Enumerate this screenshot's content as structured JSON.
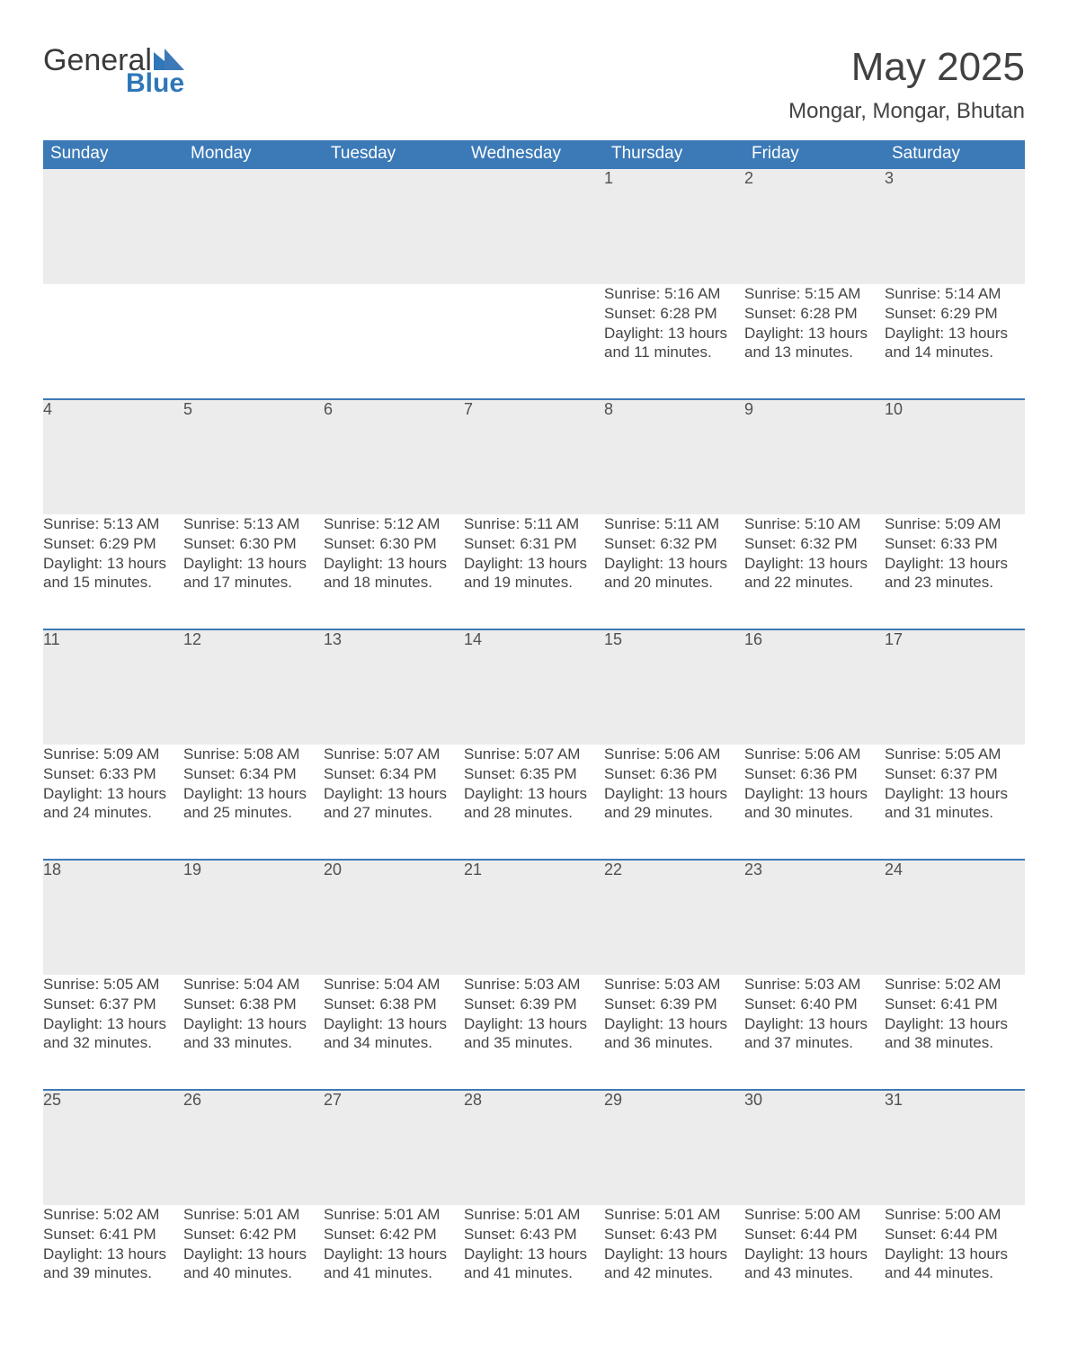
{
  "logo": {
    "text1": "General",
    "text2": "Blue",
    "accent_color": "#2f77b8"
  },
  "title": "May 2025",
  "subtitle": "Mongar, Mongar, Bhutan",
  "header_bg": "#3c7ab7",
  "header_fg": "#ffffff",
  "daynum_bg": "#ececec",
  "border_color": "#3c7ab7",
  "text_color": "#454545",
  "font_family": "Arial, Helvetica, sans-serif",
  "weekdays": [
    "Sunday",
    "Monday",
    "Tuesday",
    "Wednesday",
    "Thursday",
    "Friday",
    "Saturday"
  ],
  "weeks": [
    [
      null,
      null,
      null,
      null,
      {
        "n": "1",
        "sunrise": "5:16 AM",
        "sunset": "6:28 PM",
        "daylight": "13 hours and 11 minutes."
      },
      {
        "n": "2",
        "sunrise": "5:15 AM",
        "sunset": "6:28 PM",
        "daylight": "13 hours and 13 minutes."
      },
      {
        "n": "3",
        "sunrise": "5:14 AM",
        "sunset": "6:29 PM",
        "daylight": "13 hours and 14 minutes."
      }
    ],
    [
      {
        "n": "4",
        "sunrise": "5:13 AM",
        "sunset": "6:29 PM",
        "daylight": "13 hours and 15 minutes."
      },
      {
        "n": "5",
        "sunrise": "5:13 AM",
        "sunset": "6:30 PM",
        "daylight": "13 hours and 17 minutes."
      },
      {
        "n": "6",
        "sunrise": "5:12 AM",
        "sunset": "6:30 PM",
        "daylight": "13 hours and 18 minutes."
      },
      {
        "n": "7",
        "sunrise": "5:11 AM",
        "sunset": "6:31 PM",
        "daylight": "13 hours and 19 minutes."
      },
      {
        "n": "8",
        "sunrise": "5:11 AM",
        "sunset": "6:32 PM",
        "daylight": "13 hours and 20 minutes."
      },
      {
        "n": "9",
        "sunrise": "5:10 AM",
        "sunset": "6:32 PM",
        "daylight": "13 hours and 22 minutes."
      },
      {
        "n": "10",
        "sunrise": "5:09 AM",
        "sunset": "6:33 PM",
        "daylight": "13 hours and 23 minutes."
      }
    ],
    [
      {
        "n": "11",
        "sunrise": "5:09 AM",
        "sunset": "6:33 PM",
        "daylight": "13 hours and 24 minutes."
      },
      {
        "n": "12",
        "sunrise": "5:08 AM",
        "sunset": "6:34 PM",
        "daylight": "13 hours and 25 minutes."
      },
      {
        "n": "13",
        "sunrise": "5:07 AM",
        "sunset": "6:34 PM",
        "daylight": "13 hours and 27 minutes."
      },
      {
        "n": "14",
        "sunrise": "5:07 AM",
        "sunset": "6:35 PM",
        "daylight": "13 hours and 28 minutes."
      },
      {
        "n": "15",
        "sunrise": "5:06 AM",
        "sunset": "6:36 PM",
        "daylight": "13 hours and 29 minutes."
      },
      {
        "n": "16",
        "sunrise": "5:06 AM",
        "sunset": "6:36 PM",
        "daylight": "13 hours and 30 minutes."
      },
      {
        "n": "17",
        "sunrise": "5:05 AM",
        "sunset": "6:37 PM",
        "daylight": "13 hours and 31 minutes."
      }
    ],
    [
      {
        "n": "18",
        "sunrise": "5:05 AM",
        "sunset": "6:37 PM",
        "daylight": "13 hours and 32 minutes."
      },
      {
        "n": "19",
        "sunrise": "5:04 AM",
        "sunset": "6:38 PM",
        "daylight": "13 hours and 33 minutes."
      },
      {
        "n": "20",
        "sunrise": "5:04 AM",
        "sunset": "6:38 PM",
        "daylight": "13 hours and 34 minutes."
      },
      {
        "n": "21",
        "sunrise": "5:03 AM",
        "sunset": "6:39 PM",
        "daylight": "13 hours and 35 minutes."
      },
      {
        "n": "22",
        "sunrise": "5:03 AM",
        "sunset": "6:39 PM",
        "daylight": "13 hours and 36 minutes."
      },
      {
        "n": "23",
        "sunrise": "5:03 AM",
        "sunset": "6:40 PM",
        "daylight": "13 hours and 37 minutes."
      },
      {
        "n": "24",
        "sunrise": "5:02 AM",
        "sunset": "6:41 PM",
        "daylight": "13 hours and 38 minutes."
      }
    ],
    [
      {
        "n": "25",
        "sunrise": "5:02 AM",
        "sunset": "6:41 PM",
        "daylight": "13 hours and 39 minutes."
      },
      {
        "n": "26",
        "sunrise": "5:01 AM",
        "sunset": "6:42 PM",
        "daylight": "13 hours and 40 minutes."
      },
      {
        "n": "27",
        "sunrise": "5:01 AM",
        "sunset": "6:42 PM",
        "daylight": "13 hours and 41 minutes."
      },
      {
        "n": "28",
        "sunrise": "5:01 AM",
        "sunset": "6:43 PM",
        "daylight": "13 hours and 41 minutes."
      },
      {
        "n": "29",
        "sunrise": "5:01 AM",
        "sunset": "6:43 PM",
        "daylight": "13 hours and 42 minutes."
      },
      {
        "n": "30",
        "sunrise": "5:00 AM",
        "sunset": "6:44 PM",
        "daylight": "13 hours and 43 minutes."
      },
      {
        "n": "31",
        "sunrise": "5:00 AM",
        "sunset": "6:44 PM",
        "daylight": "13 hours and 44 minutes."
      }
    ]
  ],
  "labels": {
    "sunrise": "Sunrise: ",
    "sunset": "Sunset: ",
    "daylight": "Daylight: "
  }
}
